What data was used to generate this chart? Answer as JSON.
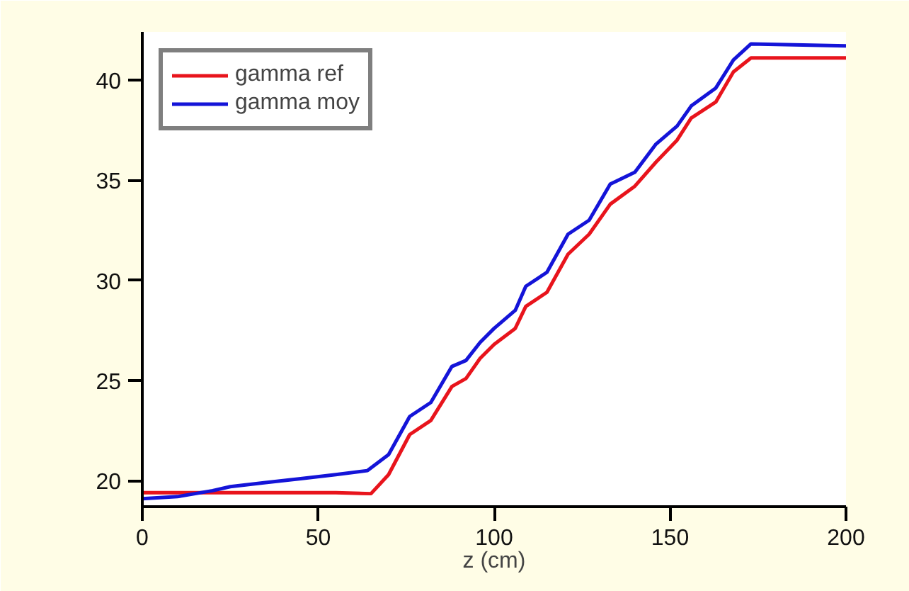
{
  "chart_data": {
    "type": "line",
    "xlabel": "z (cm)",
    "xlim": [
      0,
      200
    ],
    "xticks": [
      0,
      50,
      100,
      150,
      200
    ],
    "ylim": [
      18.7,
      42.4
    ],
    "yticks": [
      20,
      25,
      30,
      35,
      40
    ],
    "grid": false,
    "legend": "top left",
    "marker": "none",
    "line_style": "solid",
    "series": [
      {
        "name": "gamma ref",
        "color": "#e8141c",
        "x": [
          0,
          20,
          40,
          55,
          65,
          70,
          76,
          82,
          88,
          92,
          96,
          100,
          106,
          109,
          115,
          121,
          127,
          133,
          140,
          146,
          152,
          156,
          163,
          168,
          173,
          200
        ],
        "values": [
          19.4,
          19.4,
          19.4,
          19.4,
          19.35,
          20.3,
          22.3,
          23.0,
          24.7,
          25.1,
          26.1,
          26.8,
          27.6,
          28.7,
          29.4,
          31.3,
          32.3,
          33.8,
          34.7,
          35.9,
          37.0,
          38.1,
          38.9,
          40.4,
          41.1,
          41.1
        ]
      },
      {
        "name": "gamma moy",
        "color": "#1414d8",
        "x": [
          0,
          10,
          20,
          25,
          35,
          45,
          55,
          64,
          70,
          76,
          82,
          88,
          92,
          96,
          100,
          106,
          109,
          115,
          121,
          127,
          133,
          140,
          146,
          152,
          156,
          163,
          168,
          173,
          200
        ],
        "values": [
          19.1,
          19.2,
          19.5,
          19.7,
          19.9,
          20.1,
          20.3,
          20.5,
          21.3,
          23.2,
          23.9,
          25.7,
          26.0,
          26.9,
          27.6,
          28.5,
          29.7,
          30.4,
          32.3,
          33.0,
          34.8,
          35.4,
          36.8,
          37.7,
          38.7,
          39.6,
          41.0,
          41.8,
          41.7
        ]
      }
    ]
  }
}
